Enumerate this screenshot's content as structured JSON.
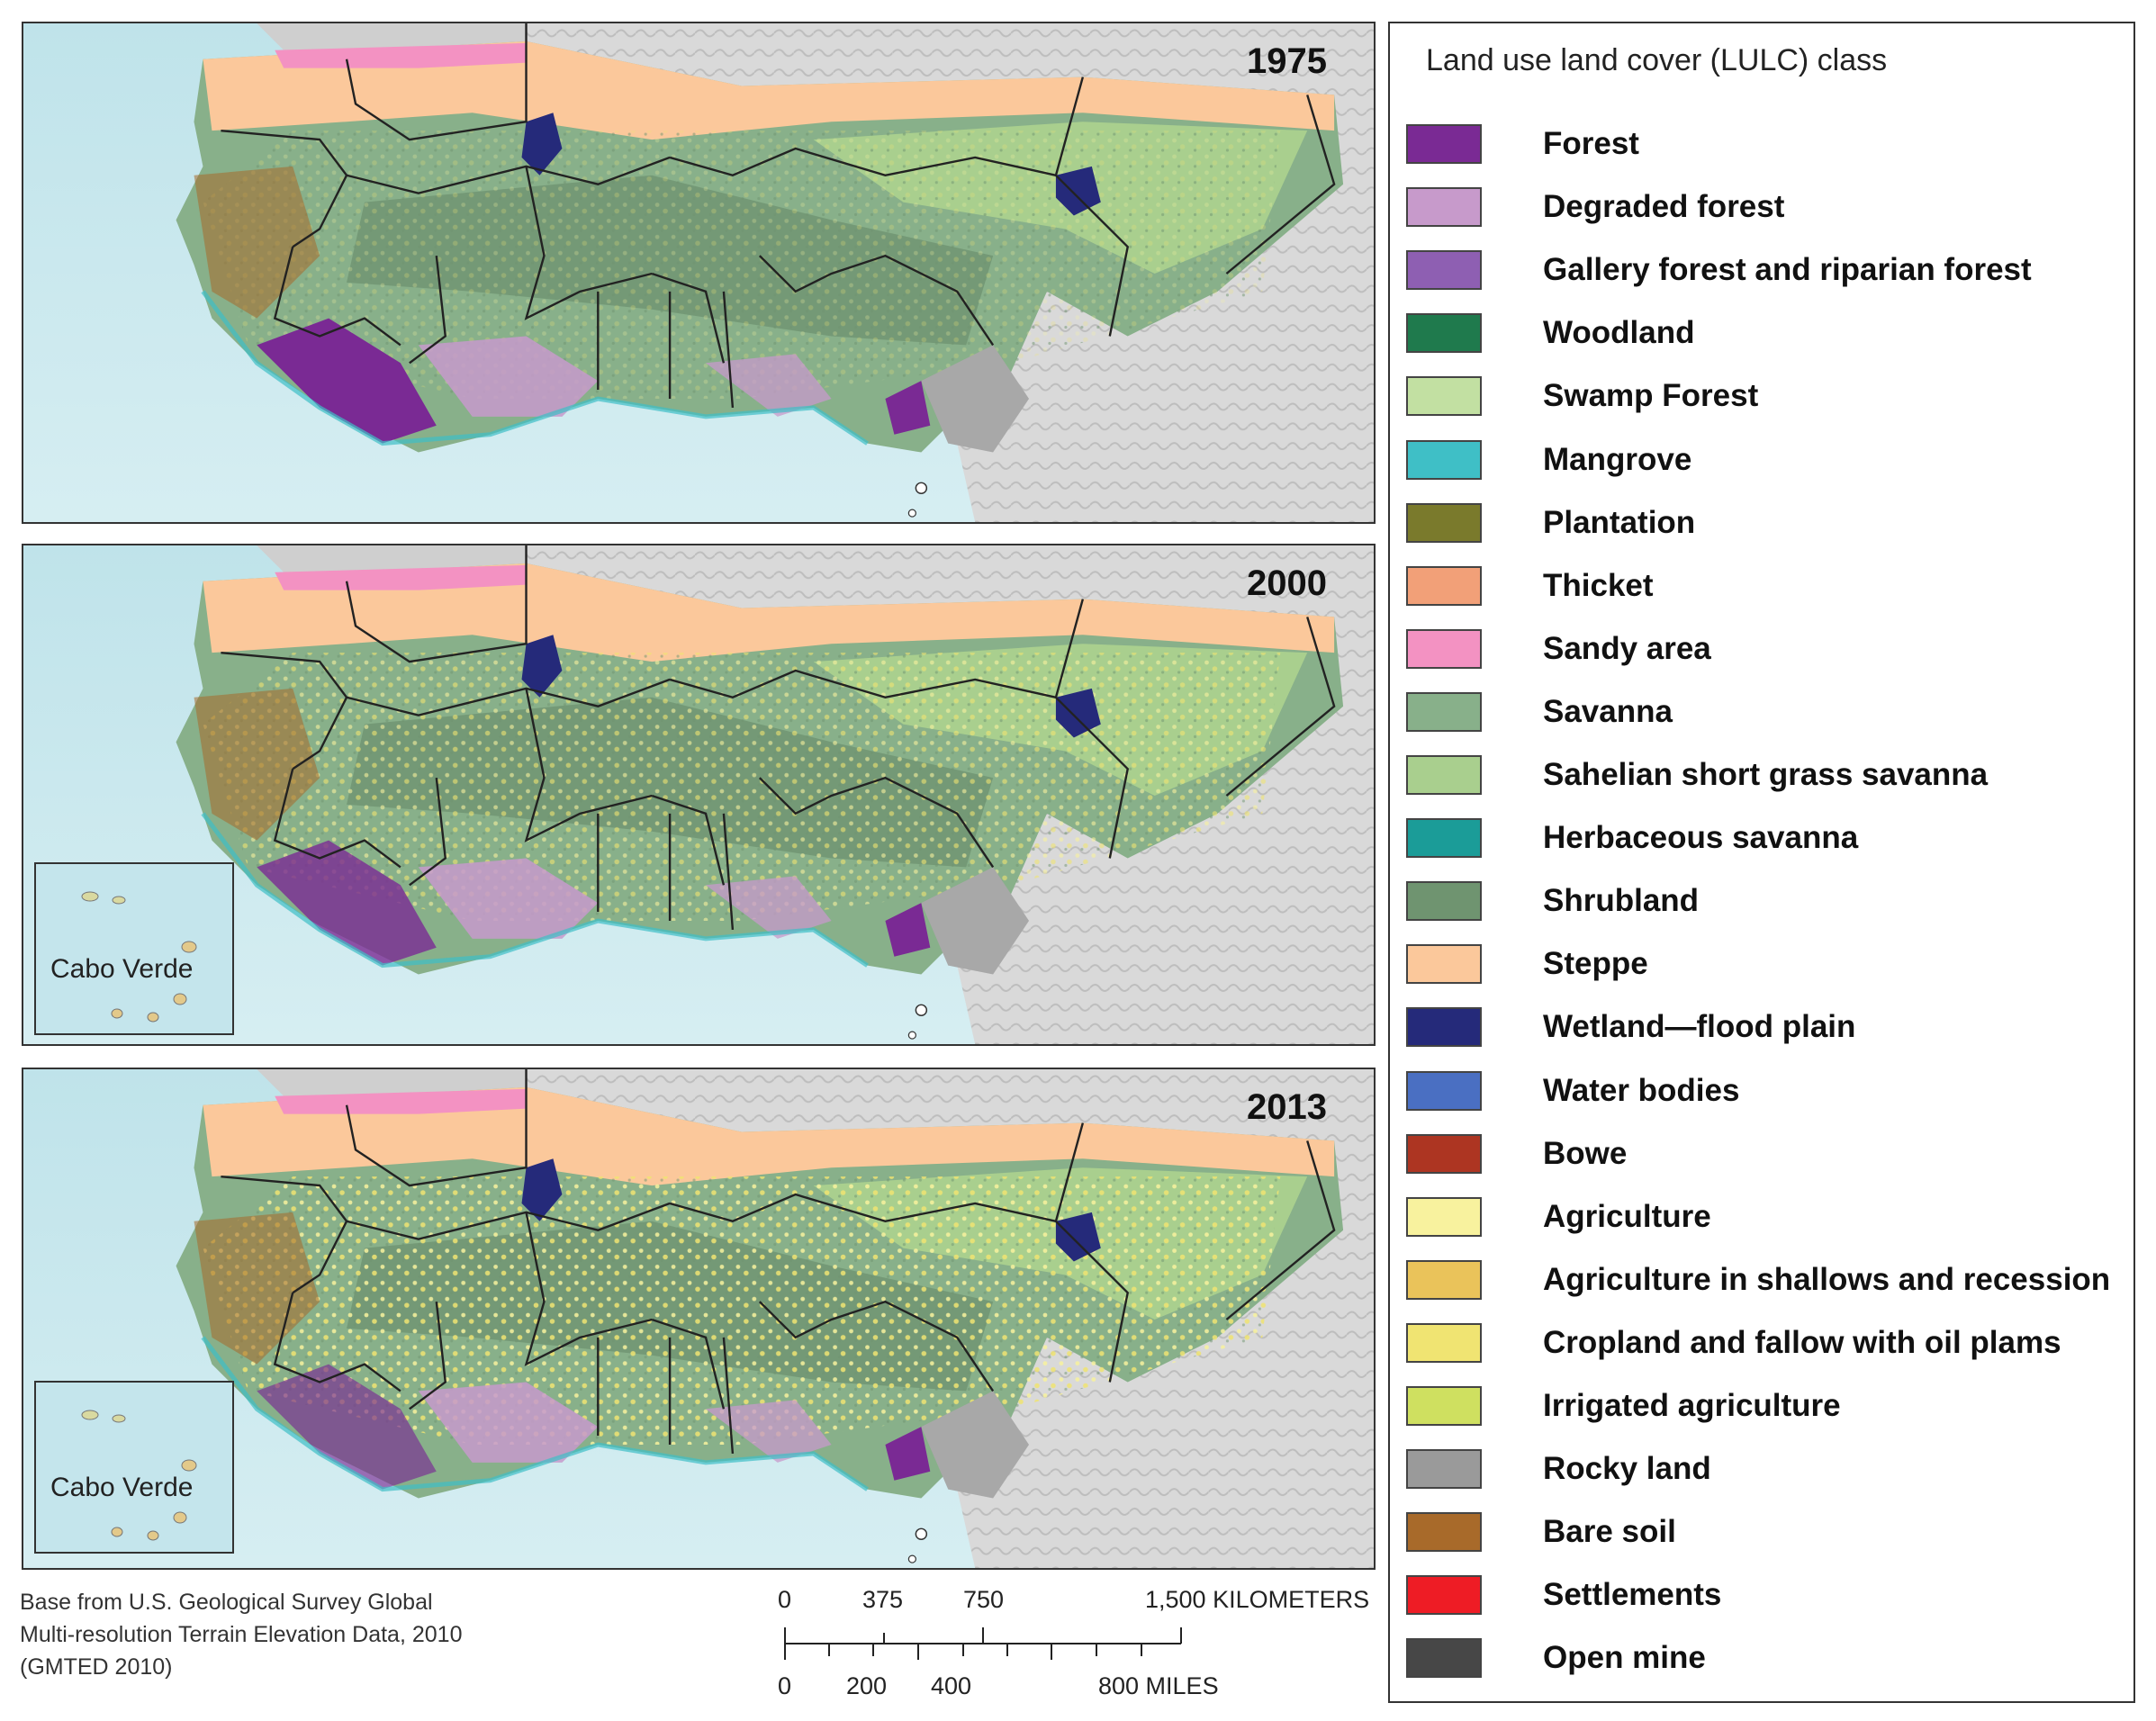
{
  "panels": [
    {
      "year": "1975",
      "inset_label": ""
    },
    {
      "year": "2000",
      "inset_label": "Cabo Verde"
    },
    {
      "year": "2013",
      "inset_label": "Cabo Verde"
    }
  ],
  "legend": {
    "title": "Land use land cover (LULC) class",
    "items": [
      {
        "label": "Forest",
        "color": "#7a2a94"
      },
      {
        "label": "Degraded forest",
        "color": "#c79acb"
      },
      {
        "label": "Gallery forest and riparian forest",
        "color": "#8e5fb2"
      },
      {
        "label": "Woodland",
        "color": "#1f7a4d"
      },
      {
        "label": "Swamp Forest",
        "color": "#c2e0a2"
      },
      {
        "label": "Mangrove",
        "color": "#3fbfc6"
      },
      {
        "label": "Plantation",
        "color": "#7a7a2c"
      },
      {
        "label": "Thicket",
        "color": "#f2a078"
      },
      {
        "label": "Sandy area",
        "color": "#f392c2"
      },
      {
        "label": "Savanna",
        "color": "#88b08a"
      },
      {
        "label": "Sahelian short grass savanna",
        "color": "#a9cf8e"
      },
      {
        "label": "Herbaceous savanna",
        "color": "#1b9c98"
      },
      {
        "label": "Shrubland",
        "color": "#6f9470"
      },
      {
        "label": "Steppe",
        "color": "#fbc89b"
      },
      {
        "label": "Wetland—flood plain",
        "color": "#252a7a"
      },
      {
        "label": "Water bodies",
        "color": "#4a6fc2"
      },
      {
        "label": "Bowe",
        "color": "#ad3522"
      },
      {
        "label": "Agriculture",
        "color": "#f8f29e"
      },
      {
        "label": "Agriculture in shallows and recession",
        "color": "#eac35a"
      },
      {
        "label": "Cropland and fallow with oil plams",
        "color": "#f0e472"
      },
      {
        "label": "Irrigated agriculture",
        "color": "#cfe060"
      },
      {
        "label": "Rocky land",
        "color": "#9a9a9a"
      },
      {
        "label": "Bare soil",
        "color": "#a86a2a"
      },
      {
        "label": "Settlements",
        "color": "#ee1c25"
      },
      {
        "label": "Open mine",
        "color": "#474747"
      }
    ]
  },
  "source_credit": "Base from U.S. Geological Survey Global Multi-resolution Terrain Elevation Data, 2010 (GMTED 2010)",
  "scale": {
    "km_labels": [
      "0",
      "375",
      "750",
      "1,500 KILOMETERS"
    ],
    "mile_labels": [
      "0",
      "200",
      "400",
      "800 MILES"
    ]
  }
}
